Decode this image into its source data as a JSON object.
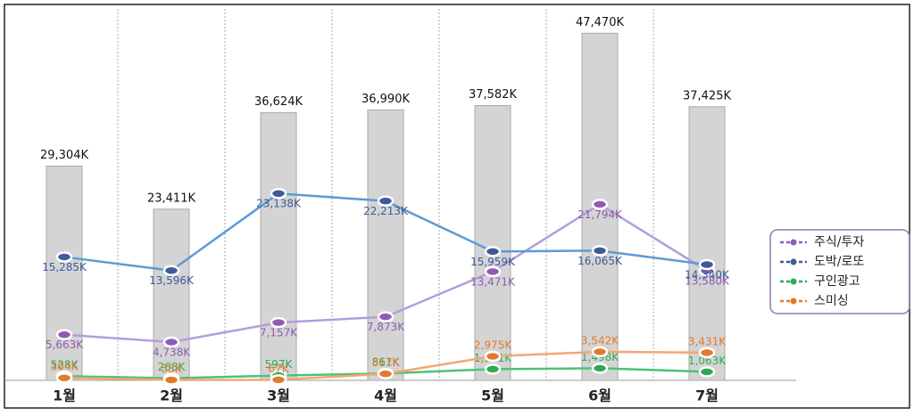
{
  "chart_data": {
    "type": "bar",
    "categories": [
      "1월",
      "2월",
      "3월",
      "4월",
      "5월",
      "6월",
      "7월"
    ],
    "values": [
      29304,
      23411,
      36624,
      36990,
      37582,
      47470,
      37425
    ],
    "value_labels": [
      "29,304K",
      "23,411K",
      "36,624K",
      "36,990K",
      "37,582K",
      "47,470K",
      "37,425K"
    ],
    "color": "#d4d4d4",
    "ylim": [
      0,
      50800
    ],
    "y2lim": [
      0,
      46000
    ],
    "legend": "right",
    "series": [
      {
        "name": "주식/투자",
        "color": "#b39ddb",
        "label_color": "#8e5bb5",
        "axis": "y2",
        "values": [
          5663,
          4738,
          7157,
          7873,
          13471,
          21794,
          13580
        ],
        "value_labels": [
          "5,663K",
          "4,738K",
          "7,157K",
          "7,873K",
          "13,471K",
          "21,794K",
          "13,580K"
        ]
      },
      {
        "name": "도박/로또",
        "color": "#5b9bd5",
        "label_color": "#3d5a99",
        "axis": "y2",
        "values": [
          15285,
          13596,
          23138,
          22213,
          15959,
          16065,
          14340
        ],
        "value_labels": [
          "15,285K",
          "13,596K",
          "23,138K",
          "22,213K",
          "15,959K",
          "16,065K",
          "14,340K"
        ]
      },
      {
        "name": "구인광고",
        "color": "#4cc27a",
        "label_color": "#2eaa55",
        "axis": "y2",
        "values": [
          528,
          268,
          597,
          861,
          1391,
          1498,
          1063
        ],
        "value_labels": [
          "528K",
          "268K",
          "597K",
          "861K",
          "1,391K",
          "1,498K",
          "1,063K"
        ]
      },
      {
        "name": "스미싱",
        "color": "#f4a672",
        "label_color": "#e07b2e",
        "axis": "y2",
        "values": [
          304,
          55,
          67,
          817,
          2975,
          3542,
          3431
        ],
        "value_labels": [
          "304K",
          "55K",
          "67K",
          "817K",
          "2,975K",
          "3,542K",
          "3,431K"
        ]
      }
    ]
  }
}
